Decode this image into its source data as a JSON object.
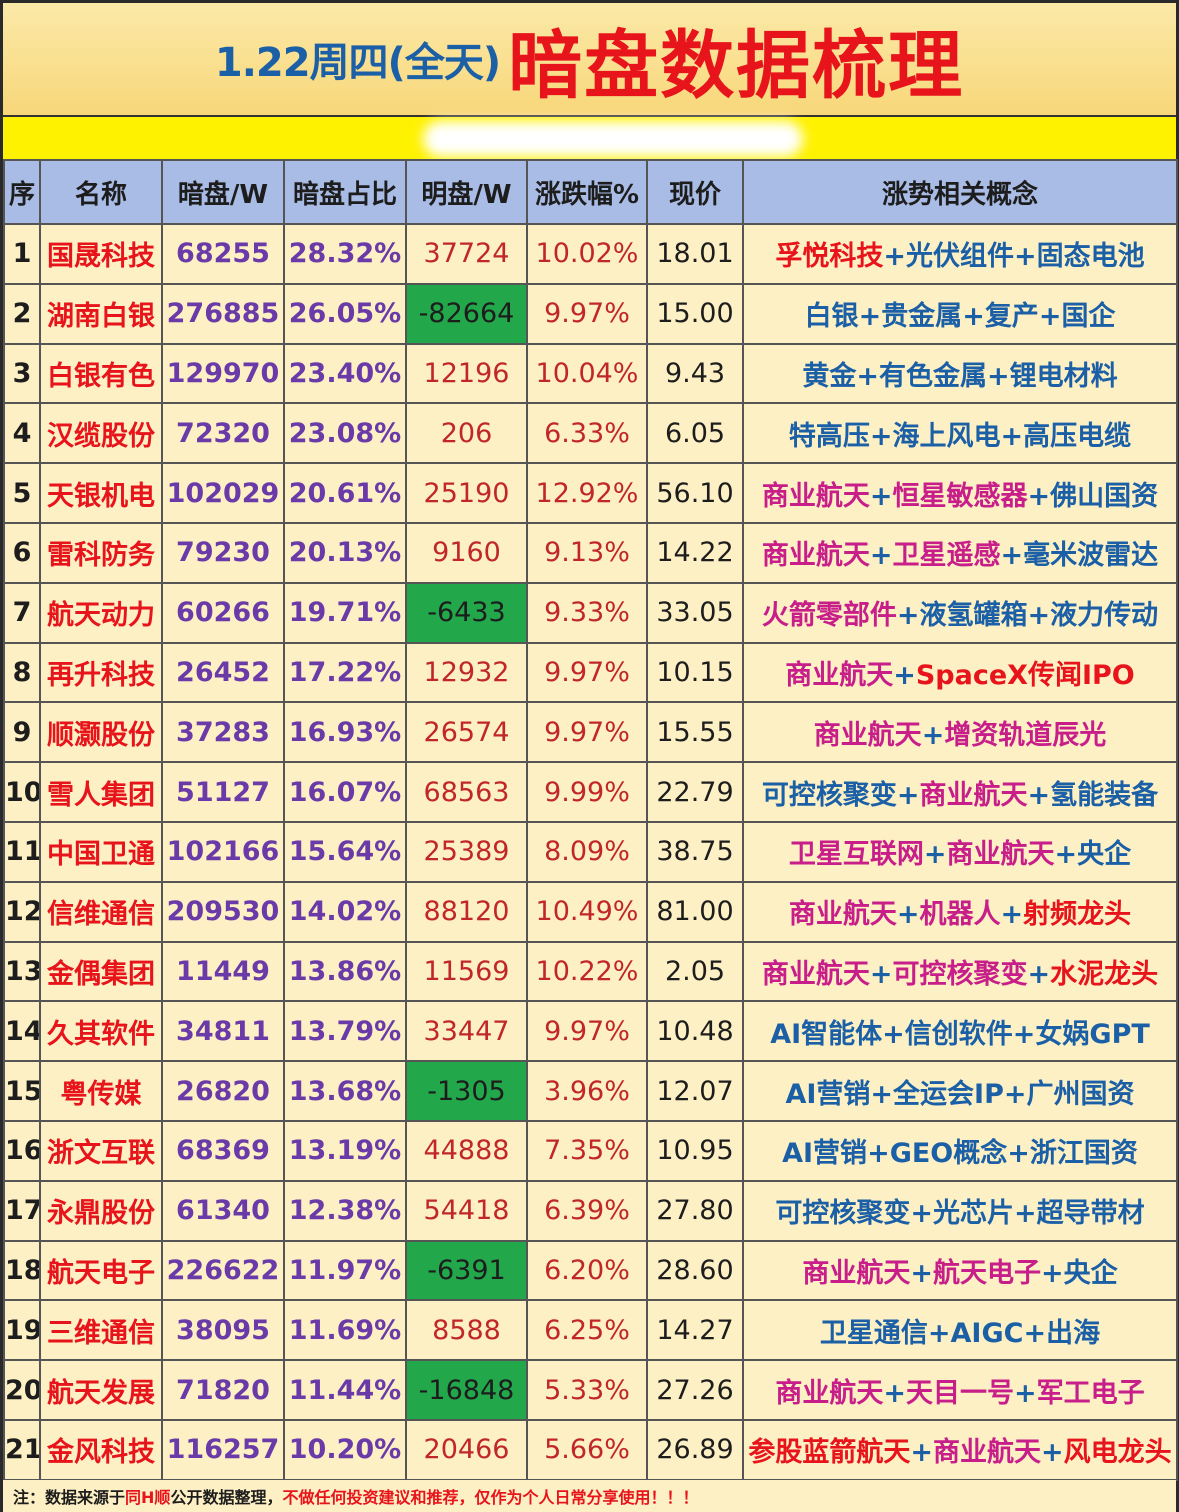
{
  "title": {
    "date": "1.22周四(全天)",
    "main": "暗盘数据梳理"
  },
  "colors": {
    "name_red": "#e8141c",
    "num_purple": "#6a3aa8",
    "neg_green": "#22a84b",
    "header_blue": "#a9bce6",
    "concept_blue": "#1b5fa6",
    "concept_pink": "#c71e8a"
  },
  "headers": [
    "序",
    "名称",
    "暗盘/W",
    "暗盘占比",
    "明盘/W",
    "涨跌幅%",
    "现价",
    "涨势相关概念"
  ],
  "rows": [
    {
      "seq": "1",
      "name": "国晟科技",
      "dark": "68255",
      "ratio": "28.32%",
      "ming": "37724",
      "neg": false,
      "chg": "10.02%",
      "price": "18.01",
      "concepts": [
        {
          "t": "孚悦科技",
          "c": "red"
        },
        {
          "t": "光伏组件",
          "c": "blue"
        },
        {
          "t": "固态电池",
          "c": "blue"
        }
      ]
    },
    {
      "seq": "2",
      "name": "湖南白银",
      "dark": "276885",
      "ratio": "26.05%",
      "ming": "-82664",
      "neg": true,
      "chg": "9.97%",
      "price": "15.00",
      "concepts": [
        {
          "t": "白银",
          "c": "blue"
        },
        {
          "t": "贵金属",
          "c": "blue"
        },
        {
          "t": "复产",
          "c": "blue"
        },
        {
          "t": "国企",
          "c": "blue"
        }
      ]
    },
    {
      "seq": "3",
      "name": "白银有色",
      "dark": "129970",
      "ratio": "23.40%",
      "ming": "12196",
      "neg": false,
      "chg": "10.04%",
      "price": "9.43",
      "concepts": [
        {
          "t": "黄金",
          "c": "blue"
        },
        {
          "t": "有色金属",
          "c": "blue"
        },
        {
          "t": "锂电材料",
          "c": "blue"
        }
      ]
    },
    {
      "seq": "4",
      "name": "汉缆股份",
      "dark": "72320",
      "ratio": "23.08%",
      "ming": "206",
      "neg": false,
      "chg": "6.33%",
      "price": "6.05",
      "concepts": [
        {
          "t": "特高压",
          "c": "blue"
        },
        {
          "t": "海上风电",
          "c": "blue"
        },
        {
          "t": "高压电缆",
          "c": "blue"
        }
      ]
    },
    {
      "seq": "5",
      "name": "天银机电",
      "dark": "102029",
      "ratio": "20.61%",
      "ming": "25190",
      "neg": false,
      "chg": "12.92%",
      "price": "56.10",
      "concepts": [
        {
          "t": "商业航天",
          "c": "pink"
        },
        {
          "t": "恒星敏感器",
          "c": "pink"
        },
        {
          "t": "佛山国资",
          "c": "blue"
        }
      ]
    },
    {
      "seq": "6",
      "name": "雷科防务",
      "dark": "79230",
      "ratio": "20.13%",
      "ming": "9160",
      "neg": false,
      "chg": "9.13%",
      "price": "14.22",
      "concepts": [
        {
          "t": "商业航天",
          "c": "pink"
        },
        {
          "t": "卫星遥感",
          "c": "pink"
        },
        {
          "t": "毫米波雷达",
          "c": "blue"
        }
      ]
    },
    {
      "seq": "7",
      "name": "航天动力",
      "dark": "60266",
      "ratio": "19.71%",
      "ming": "-6433",
      "neg": true,
      "chg": "9.33%",
      "price": "33.05",
      "concepts": [
        {
          "t": "火箭零部件",
          "c": "pink"
        },
        {
          "t": "液氢罐箱",
          "c": "blue"
        },
        {
          "t": "液力传动",
          "c": "blue"
        }
      ]
    },
    {
      "seq": "8",
      "name": "再升科技",
      "dark": "26452",
      "ratio": "17.22%",
      "ming": "12932",
      "neg": false,
      "chg": "9.97%",
      "price": "10.15",
      "concepts": [
        {
          "t": "商业航天",
          "c": "pink"
        },
        {
          "t": "SpaceX传闻IPO",
          "c": "red"
        }
      ]
    },
    {
      "seq": "9",
      "name": "顺灏股份",
      "dark": "37283",
      "ratio": "16.93%",
      "ming": "26574",
      "neg": false,
      "chg": "9.97%",
      "price": "15.55",
      "concepts": [
        {
          "t": "商业航天",
          "c": "pink"
        },
        {
          "t": "增资轨道辰光",
          "c": "pink"
        }
      ]
    },
    {
      "seq": "10",
      "name": "雪人集团",
      "dark": "51127",
      "ratio": "16.07%",
      "ming": "68563",
      "neg": false,
      "chg": "9.99%",
      "price": "22.79",
      "concepts": [
        {
          "t": "可控核聚变",
          "c": "blue"
        },
        {
          "t": "商业航天",
          "c": "pink"
        },
        {
          "t": "氢能装备",
          "c": "blue"
        }
      ]
    },
    {
      "seq": "11",
      "name": "中国卫通",
      "dark": "102166",
      "ratio": "15.64%",
      "ming": "25389",
      "neg": false,
      "chg": "8.09%",
      "price": "38.75",
      "concepts": [
        {
          "t": "卫星互联网",
          "c": "pink"
        },
        {
          "t": "商业航天",
          "c": "pink"
        },
        {
          "t": "央企",
          "c": "blue"
        }
      ]
    },
    {
      "seq": "12",
      "name": "信维通信",
      "dark": "209530",
      "ratio": "14.02%",
      "ming": "88120",
      "neg": false,
      "chg": "10.49%",
      "price": "81.00",
      "concepts": [
        {
          "t": "商业航天",
          "c": "pink"
        },
        {
          "t": "机器人",
          "c": "pink"
        },
        {
          "t": "射频龙头",
          "c": "red"
        }
      ]
    },
    {
      "seq": "13",
      "name": "金偶集团",
      "dark": "11449",
      "ratio": "13.86%",
      "ming": "11569",
      "neg": false,
      "chg": "10.22%",
      "price": "2.05",
      "concepts": [
        {
          "t": "商业航天",
          "c": "pink"
        },
        {
          "t": "可控核聚变",
          "c": "pink"
        },
        {
          "t": "水泥龙头",
          "c": "red"
        }
      ]
    },
    {
      "seq": "14",
      "name": "久其软件",
      "dark": "34811",
      "ratio": "13.79%",
      "ming": "33447",
      "neg": false,
      "chg": "9.97%",
      "price": "10.48",
      "concepts": [
        {
          "t": "AI智能体",
          "c": "blue"
        },
        {
          "t": "信创软件",
          "c": "blue"
        },
        {
          "t": "女娲GPT",
          "c": "blue"
        }
      ]
    },
    {
      "seq": "15",
      "name": "粤传媒",
      "dark": "26820",
      "ratio": "13.68%",
      "ming": "-1305",
      "neg": true,
      "chg": "3.96%",
      "price": "12.07",
      "concepts": [
        {
          "t": "AI营销",
          "c": "blue"
        },
        {
          "t": "全运会IP",
          "c": "blue"
        },
        {
          "t": "广州国资",
          "c": "blue"
        }
      ]
    },
    {
      "seq": "16",
      "name": "浙文互联",
      "dark": "68369",
      "ratio": "13.19%",
      "ming": "44888",
      "neg": false,
      "chg": "7.35%",
      "price": "10.95",
      "concepts": [
        {
          "t": "AI营销",
          "c": "blue"
        },
        {
          "t": "GEO概念",
          "c": "blue"
        },
        {
          "t": "浙江国资",
          "c": "blue"
        }
      ]
    },
    {
      "seq": "17",
      "name": "永鼎股份",
      "dark": "61340",
      "ratio": "12.38%",
      "ming": "54418",
      "neg": false,
      "chg": "6.39%",
      "price": "27.80",
      "concepts": [
        {
          "t": "可控核聚变",
          "c": "blue"
        },
        {
          "t": "光芯片",
          "c": "blue"
        },
        {
          "t": "超导带材",
          "c": "blue"
        }
      ]
    },
    {
      "seq": "18",
      "name": "航天电子",
      "dark": "226622",
      "ratio": "11.97%",
      "ming": "-6391",
      "neg": true,
      "chg": "6.20%",
      "price": "28.60",
      "concepts": [
        {
          "t": "商业航天",
          "c": "pink"
        },
        {
          "t": "航天电子",
          "c": "pink"
        },
        {
          "t": "央企",
          "c": "blue"
        }
      ]
    },
    {
      "seq": "19",
      "name": "三维通信",
      "dark": "38095",
      "ratio": "11.69%",
      "ming": "8588",
      "neg": false,
      "chg": "6.25%",
      "price": "14.27",
      "concepts": [
        {
          "t": "卫星通信",
          "c": "blue"
        },
        {
          "t": "AIGC",
          "c": "blue"
        },
        {
          "t": "出海",
          "c": "blue"
        }
      ]
    },
    {
      "seq": "20",
      "name": "航天发展",
      "dark": "71820",
      "ratio": "11.44%",
      "ming": "-16848",
      "neg": true,
      "chg": "5.33%",
      "price": "27.26",
      "concepts": [
        {
          "t": "商业航天",
          "c": "pink"
        },
        {
          "t": "天目一号",
          "c": "pink"
        },
        {
          "t": "军工电子",
          "c": "pink"
        }
      ]
    },
    {
      "seq": "21",
      "name": "金风科技",
      "dark": "116257",
      "ratio": "10.20%",
      "ming": "20466",
      "neg": false,
      "chg": "5.66%",
      "price": "26.89",
      "concepts": [
        {
          "t": "参股蓝箭航天",
          "c": "red"
        },
        {
          "t": "商业航天",
          "c": "pink"
        },
        {
          "t": "风电龙头",
          "c": "red"
        }
      ]
    }
  ],
  "footer": {
    "prefix": "注：",
    "p1": "数据来源于",
    "p2": "同H顺",
    "p3": "公开数据整理，",
    "p4": "不做任何投资建议和推荐，仅作为个人日常分享使用！！！"
  }
}
